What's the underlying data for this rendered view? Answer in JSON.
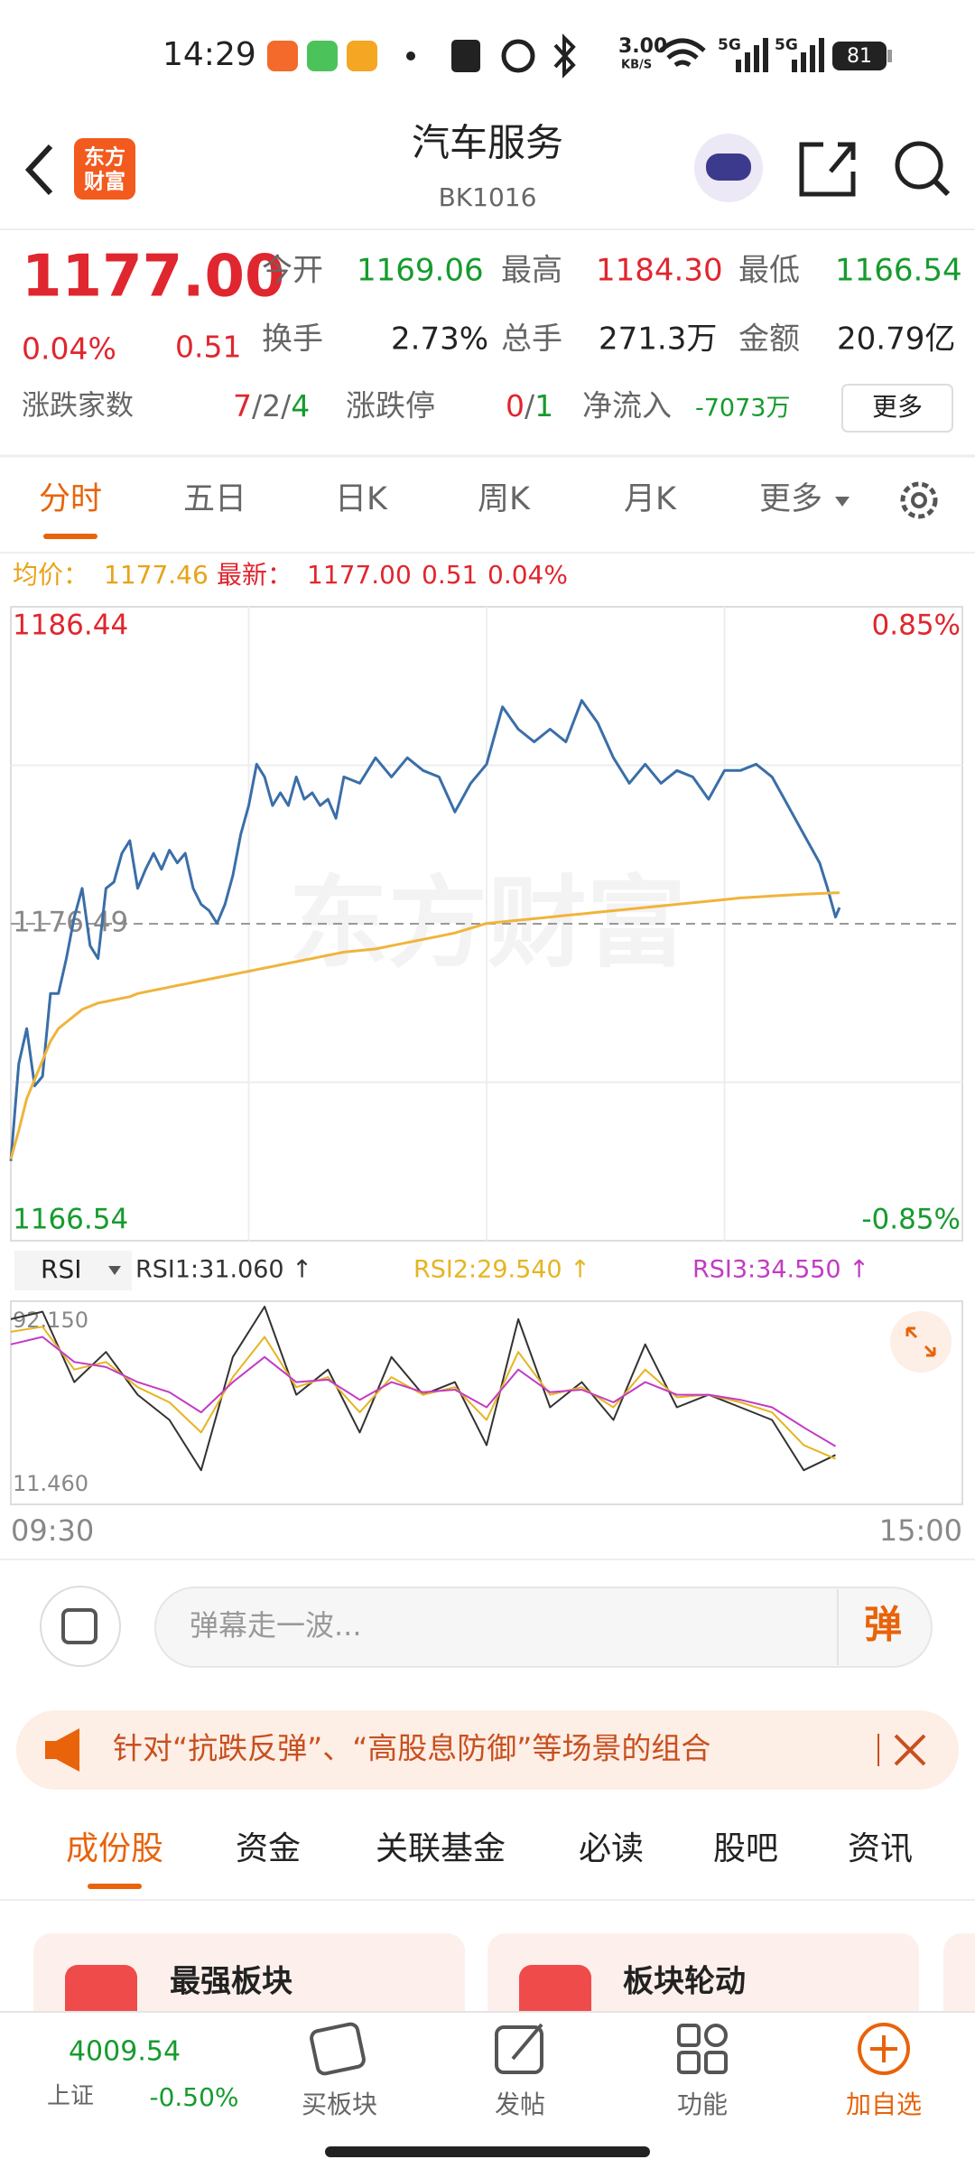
{
  "status_bar": {
    "time": "14:29",
    "net_speed": "3.00",
    "net_unit": "KB/S",
    "signal1": "5G",
    "signal2": "5G",
    "battery": "81"
  },
  "header": {
    "logo_line1": "东方",
    "logo_line2": "财富",
    "title": "汽车服务",
    "code": "BK1016"
  },
  "quote": {
    "price": "1177.00",
    "change_pct": "0.04%",
    "change": "0.51",
    "stats": [
      [
        "今开",
        "1169.06"
      ],
      [
        "最高",
        "1184.30"
      ],
      [
        "最低",
        "1166.54"
      ],
      [
        "换手",
        "2.73%"
      ],
      [
        "总手",
        "271.3万"
      ],
      [
        "金额",
        "20.79亿"
      ]
    ],
    "breadth_label": "涨跌家数",
    "breadth": [
      "7",
      "2",
      "4"
    ],
    "separator": "/",
    "limit_label": "涨跌停",
    "limit": [
      "0",
      "1"
    ],
    "flow_label": "净流入",
    "flow": "-7073万",
    "more": "更多"
  },
  "period_tabs": [
    "分时",
    "五日",
    "日K",
    "周K",
    "月K",
    "更多"
  ],
  "info": {
    "avg_label": "均价：",
    "avg": "1177.46",
    "last_label": "最新：",
    "last": "1177.00",
    "change": "0.51",
    "change_pct": "0.04%"
  },
  "watermark": "东方财富",
  "indicator": {
    "selector": "RSI"
  },
  "chart_data": [
    {
      "type": "line",
      "x": [
        0,
        2,
        4,
        6,
        8,
        10,
        12,
        14,
        16,
        18,
        20,
        22,
        24,
        26,
        28,
        30,
        32,
        34,
        36,
        38,
        40,
        42,
        44,
        46,
        48,
        50,
        52,
        54,
        56,
        58,
        60,
        62,
        64,
        66,
        68,
        70,
        72,
        74,
        76,
        78,
        80,
        82,
        84,
        88,
        92,
        96,
        100,
        104,
        108,
        112,
        116,
        120,
        124,
        128,
        132,
        136,
        140,
        144,
        148,
        152,
        156,
        160,
        164,
        168,
        172,
        176,
        180,
        184,
        188,
        192,
        196,
        200,
        204,
        206,
        208,
        209
      ],
      "xlim": [
        0,
        240
      ],
      "ylim": [
        1166.54,
        1186.44
      ],
      "yticks": [
        1166.54,
        1176.49,
        1186.44
      ],
      "y2lim": [
        -0.85,
        0.85
      ],
      "y2ticks": [
        {
          "value": -0.85,
          "label": "-0.85%"
        },
        {
          "value": 0.85,
          "label": "0.85%"
        }
      ],
      "grid": true,
      "series": [
        {
          "color": "#3a6ea8",
          "values": [
            1169.04,
            1172.1,
            1173.2,
            1171.4,
            1171.7,
            1174.3,
            1174.3,
            1175.4,
            1176.7,
            1177.6,
            1175.8,
            1175.4,
            1177.6,
            1177.8,
            1178.7,
            1179.1,
            1177.6,
            1178.2,
            1178.7,
            1178.2,
            1178.8,
            1178.4,
            1178.7,
            1177.6,
            1177.1,
            1176.9,
            1176.5,
            1177.1,
            1178.0,
            1179.3,
            1180.2,
            1181.5,
            1181.1,
            1180.2,
            1180.6,
            1180.2,
            1181.1,
            1180.4,
            1180.6,
            1180.2,
            1180.4,
            1179.8,
            1181.1,
            1180.9,
            1181.7,
            1181.1,
            1181.7,
            1181.3,
            1181.1,
            1180.0,
            1180.9,
            1181.5,
            1183.3,
            1182.6,
            1182.2,
            1182.6,
            1182.2,
            1183.5,
            1182.8,
            1181.7,
            1180.9,
            1181.5,
            1180.9,
            1181.3,
            1181.1,
            1180.4,
            1181.3,
            1181.3,
            1181.5,
            1181.1,
            1180.2,
            1179.3,
            1178.4,
            1177.6,
            1176.7,
            1177.0
          ]
        },
        {
          "color": "#f0b43c",
          "values": [
            1169.1,
            1170.0,
            1171.0,
            1171.6,
            1172.2,
            1172.8,
            1173.2,
            1173.4,
            1173.6,
            1173.8,
            1173.9,
            1174.0,
            1174.05,
            1174.1,
            1174.15,
            1174.2,
            1174.3,
            1174.35,
            1174.4,
            1174.45,
            1174.5,
            1174.55,
            1174.6,
            1174.65,
            1174.7,
            1174.75,
            1174.8,
            1174.85,
            1174.9,
            1174.95,
            1175.0,
            1175.05,
            1175.1,
            1175.15,
            1175.2,
            1175.25,
            1175.3,
            1175.35,
            1175.4,
            1175.45,
            1175.5,
            1175.55,
            1175.6,
            1175.65,
            1175.7,
            1175.8,
            1175.9,
            1176.0,
            1176.1,
            1176.2,
            1176.35,
            1176.5,
            1176.55,
            1176.6,
            1176.65,
            1176.7,
            1176.75,
            1176.8,
            1176.85,
            1176.9,
            1176.95,
            1177.0,
            1177.05,
            1177.1,
            1177.15,
            1177.2,
            1177.25,
            1177.3,
            1177.33,
            1177.36,
            1177.39,
            1177.42,
            1177.44,
            1177.45,
            1177.46,
            1177.46
          ]
        }
      ]
    },
    {
      "type": "line",
      "x": [
        0,
        8,
        16,
        24,
        32,
        40,
        48,
        56,
        64,
        72,
        80,
        88,
        96,
        104,
        112,
        120,
        128,
        136,
        144,
        152,
        160,
        168,
        176,
        184,
        192,
        200,
        208
      ],
      "xlim": [
        0,
        240
      ],
      "xticks": [
        {
          "value": 0,
          "label": "09:30"
        },
        {
          "value": 240,
          "label": "15:00"
        }
      ],
      "ylim": [
        11.46,
        92.15
      ],
      "yticks": [
        {
          "value": 11.46,
          "label": "11.460"
        },
        {
          "value": 92.15,
          "label": "92.150"
        }
      ],
      "series": [
        {
          "name": "RSI1:31.060 ↑",
          "color": "#333333",
          "values": [
            85,
            88,
            60,
            72,
            55,
            45,
            25,
            70,
            90,
            55,
            65,
            40,
            70,
            55,
            60,
            35,
            85,
            50,
            60,
            45,
            75,
            50,
            55,
            50,
            45,
            25,
            31.06
          ]
        },
        {
          "name": "RSI2:29.540 ↑",
          "color": "#e6b422",
          "values": [
            80,
            82,
            65,
            68,
            58,
            52,
            40,
            62,
            78,
            58,
            62,
            48,
            62,
            55,
            58,
            45,
            72,
            55,
            58,
            50,
            65,
            54,
            55,
            52,
            48,
            35,
            29.54
          ]
        },
        {
          "name": "RSI3:34.550 ↑",
          "color": "#c23bc4",
          "values": [
            75,
            78,
            68,
            66,
            60,
            56,
            48,
            60,
            70,
            60,
            61,
            53,
            60,
            56,
            57,
            50,
            65,
            56,
            57,
            52,
            60,
            55,
            55,
            53,
            50,
            42,
            34.55
          ]
        }
      ]
    }
  ],
  "comment": {
    "placeholder": "弹幕走一波...",
    "button": "弹"
  },
  "banner": {
    "text": "针对“抗跌反弹”、“高股息防御”等场景的组合"
  },
  "content_tabs": [
    "成份股",
    "资金",
    "关联基金",
    "必读",
    "股吧",
    "资讯"
  ],
  "cards": [
    {
      "title": "最强板块"
    },
    {
      "title": "板块轮动"
    }
  ],
  "bottom_nav": {
    "index_value": "4009.54",
    "index_name": "上证",
    "index_change": "-0.50%",
    "items": [
      "买板块",
      "发帖",
      "功能",
      "加自选"
    ]
  }
}
